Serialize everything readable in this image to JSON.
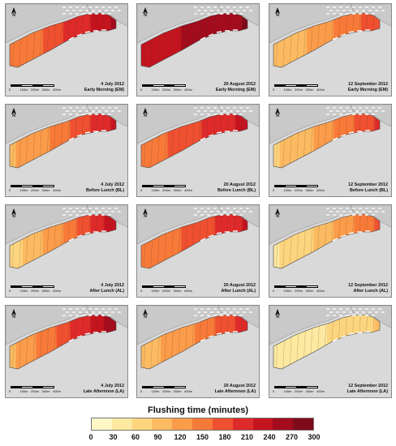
{
  "legend": {
    "title": "Flushing time (minutes)",
    "ticks": [
      "0",
      "30",
      "60",
      "90",
      "120",
      "150",
      "180",
      "210",
      "240",
      "270",
      "300"
    ],
    "colors": [
      "#fff7c6",
      "#fde9a0",
      "#fdd57e",
      "#fcbb62",
      "#fb9c4a",
      "#f87a39",
      "#ef5030",
      "#de2a2a",
      "#c4141f",
      "#a20c1d",
      "#7f0a19"
    ]
  },
  "scale_labels": [
    "0",
    "100m",
    "200m",
    "300m",
    "400m"
  ],
  "north_label": "N",
  "dates": [
    "4 July 2012",
    "20 August 2012",
    "12 September 2012"
  ],
  "times": [
    "Early Morning (EM)",
    "Before Lunch (BL)",
    "After Lunch (AL)",
    "Late Afternnon (LA)"
  ],
  "panels": [
    {
      "date": "4 July 2012",
      "time": "Early Morning (EM)",
      "west_minutes": 140,
      "east_minutes": 270
    },
    {
      "date": "20 August 2012",
      "time": "Early Morning (EM)",
      "west_minutes": 240,
      "east_minutes": 290
    },
    {
      "date": "12 September 2012",
      "time": "Early Morning (EM)",
      "west_minutes": 80,
      "east_minutes": 190
    },
    {
      "date": "4 July 2012",
      "time": "Before Lunch (BL)",
      "west_minutes": 100,
      "east_minutes": 240
    },
    {
      "date": "20 August 2012",
      "time": "Before Lunch (BL)",
      "west_minutes": 150,
      "east_minutes": 240
    },
    {
      "date": "12 September 2012",
      "time": "Before Lunch (BL)",
      "west_minutes": 70,
      "east_minutes": 210
    },
    {
      "date": "4 July 2012",
      "time": "After Lunch (AL)",
      "west_minutes": 60,
      "east_minutes": 250
    },
    {
      "date": "20 August 2012",
      "time": "After Lunch (AL)",
      "west_minutes": 140,
      "east_minutes": 230
    },
    {
      "date": "12 September 2012",
      "time": "After Lunch (AL)",
      "west_minutes": 40,
      "east_minutes": 180
    },
    {
      "date": "4 July 2012",
      "time": "Late Afternnon (LA)",
      "west_minutes": 100,
      "east_minutes": 290
    },
    {
      "date": "20 August 2012",
      "time": "Late Afternnon (LA)",
      "west_minutes": 90,
      "east_minutes": 210
    },
    {
      "date": "12 September 2012",
      "time": "Late Afternnon (LA)",
      "west_minutes": 20,
      "east_minutes": 80
    }
  ]
}
